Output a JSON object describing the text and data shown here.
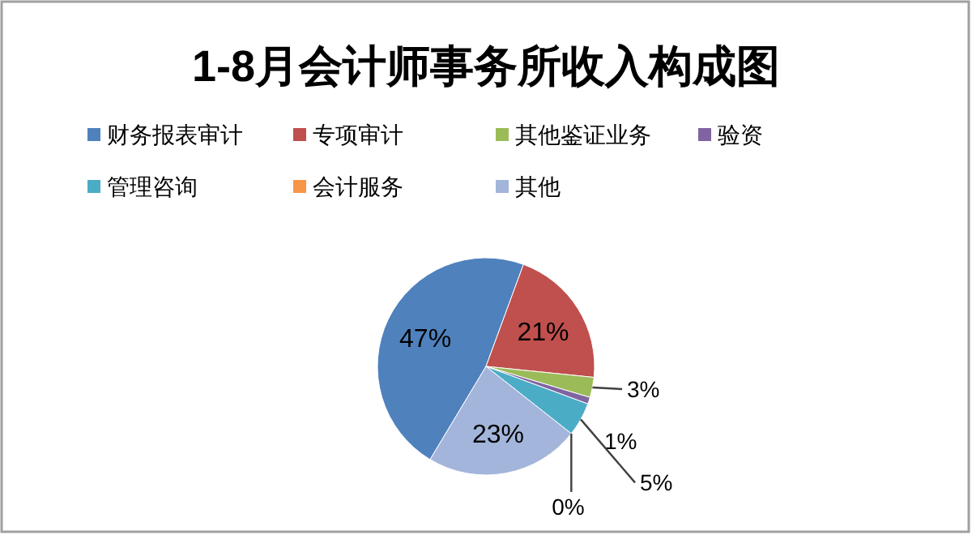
{
  "chart_data": {
    "type": "pie",
    "title": "1-8月会计师事务所收入构成图",
    "categories": [
      "财务报表审计",
      "专项审计",
      "其他鉴证业务",
      "验资",
      "管理咨询",
      "会计服务",
      "其他"
    ],
    "values": [
      47,
      21,
      3,
      1,
      5,
      0,
      23
    ],
    "value_labels": [
      "47%",
      "21%",
      "3%",
      "1%",
      "5%",
      "0%",
      "23%"
    ],
    "colors": [
      "#4f81bd",
      "#c0504d",
      "#9bbb59",
      "#8064a2",
      "#4bacc6",
      "#f79646",
      "#a3b5da"
    ],
    "legend": "top"
  }
}
